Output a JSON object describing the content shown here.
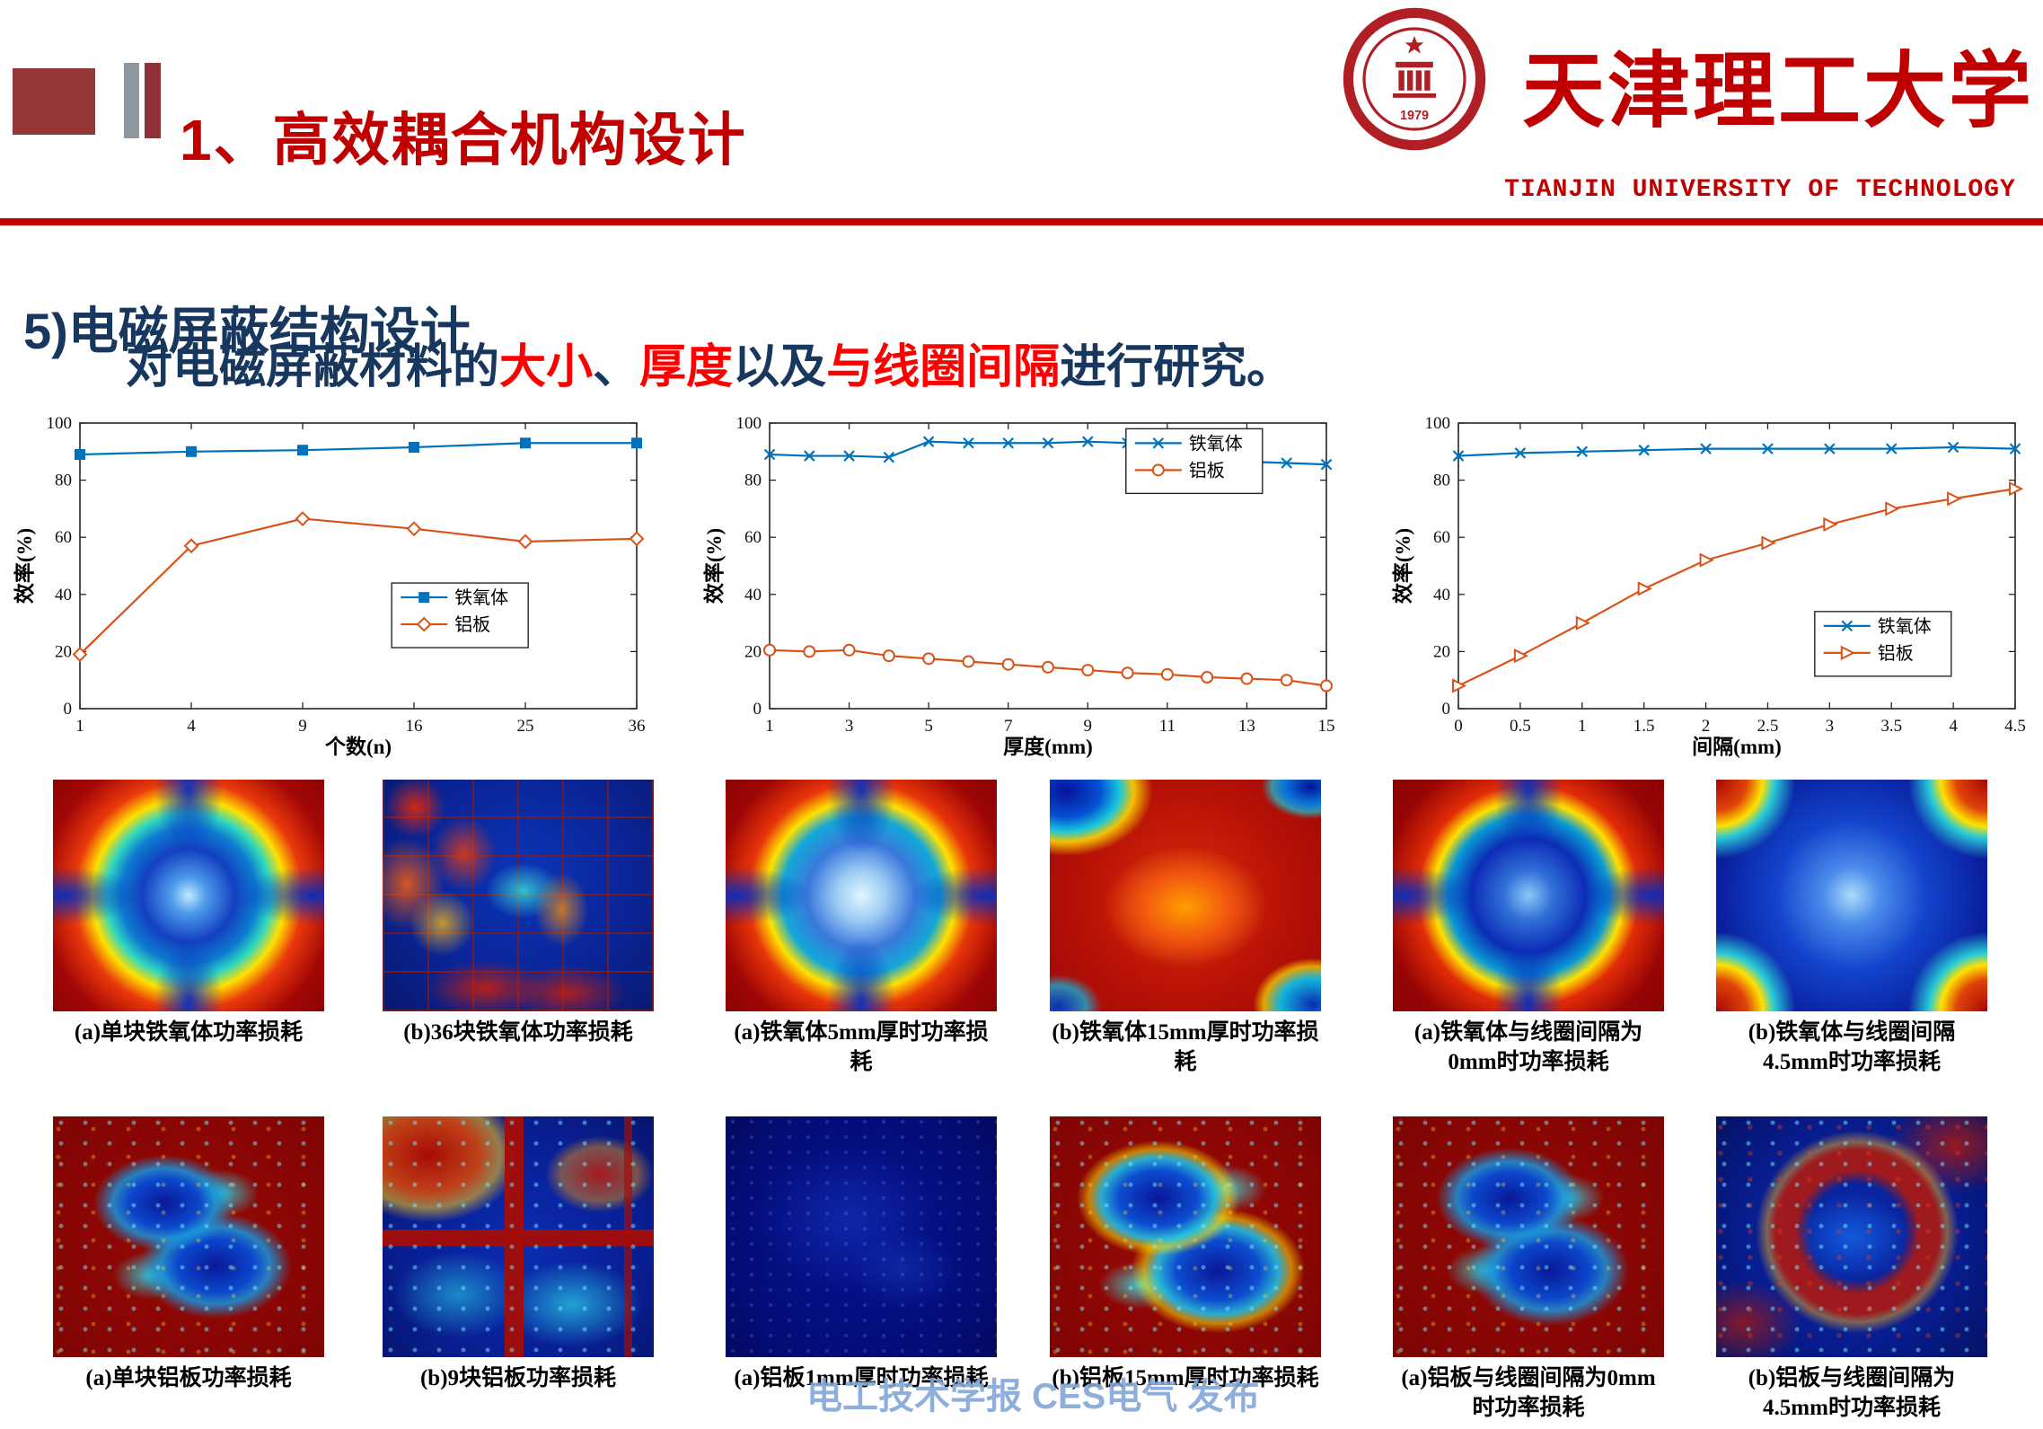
{
  "header": {
    "title": "1、高效耦合机构设计",
    "university_cn": "天津理工大学",
    "university_en": "TIANJIN UNIVERSITY OF TECHNOLOGY",
    "seal_year": "1979"
  },
  "section": {
    "title": "5)电磁屏蔽结构设计",
    "subtitle_parts": [
      {
        "text": "对电磁屏蔽材料的",
        "color": "#17375E"
      },
      {
        "text": "大小",
        "color": "#FF0000"
      },
      {
        "text": "、",
        "color": "#17375E"
      },
      {
        "text": "厚度",
        "color": "#FF0000"
      },
      {
        "text": "以及",
        "color": "#17375E"
      },
      {
        "text": "与线圈间隔",
        "color": "#FF0000"
      },
      {
        "text": "进行研究。",
        "color": "#17375E"
      }
    ]
  },
  "chart_data": [
    {
      "type": "line",
      "title": "",
      "xlabel": "个数(n)",
      "ylabel": "效率(%)",
      "categories": [
        "1",
        "4",
        "9",
        "16",
        "25",
        "36"
      ],
      "ylim": [
        0,
        100
      ],
      "yticks": [
        0,
        20,
        40,
        60,
        80,
        100
      ],
      "grid": false,
      "legend_position": "center-right",
      "legend_pos": {
        "x": 0.56,
        "y": 0.56
      },
      "series": [
        {
          "name": "铁氧体",
          "color": "#0072BD",
          "marker": "square",
          "values": [
            89,
            90,
            90.5,
            91.5,
            93,
            93
          ]
        },
        {
          "name": "铝板",
          "color": "#D95319",
          "marker": "diamond",
          "values": [
            19,
            57,
            66.5,
            63,
            58.5,
            59.5
          ]
        }
      ]
    },
    {
      "type": "line",
      "title": "",
      "xlabel": "厚度(mm)",
      "ylabel": "效率(%)",
      "x": [
        1,
        2,
        3,
        4,
        5,
        6,
        7,
        8,
        9,
        10,
        11,
        12,
        13,
        14,
        15
      ],
      "xlim": [
        1,
        15
      ],
      "xticks": [
        1,
        3,
        5,
        7,
        9,
        11,
        13,
        15
      ],
      "ylim": [
        0,
        100
      ],
      "yticks": [
        0,
        20,
        40,
        60,
        80,
        100
      ],
      "grid": false,
      "legend_position": "top-right",
      "legend_pos": {
        "x": 0.64,
        "y": 0.02
      },
      "series": [
        {
          "name": "铁氧体",
          "color": "#0072BD",
          "marker": "x",
          "values": [
            89,
            88.5,
            88.5,
            88,
            93.5,
            93,
            93,
            93,
            93.5,
            93,
            93,
            93.5,
            86.5,
            86,
            85.5
          ]
        },
        {
          "name": "铝板",
          "color": "#D95319",
          "marker": "circle",
          "values": [
            20.5,
            20,
            20.5,
            18.5,
            17.5,
            16.5,
            15.5,
            14.5,
            13.5,
            12.5,
            12,
            11,
            10.5,
            10,
            8
          ]
        }
      ]
    },
    {
      "type": "line",
      "title": "",
      "xlabel": "间隔(mm)",
      "ylabel": "效率(%)",
      "x": [
        0,
        0.5,
        1,
        1.5,
        2,
        2.5,
        3,
        3.5,
        4,
        4.5
      ],
      "xlim": [
        0,
        4.5
      ],
      "xticks": [
        0,
        0.5,
        1,
        1.5,
        2,
        2.5,
        3,
        3.5,
        4,
        4.5
      ],
      "ylim": [
        0,
        100
      ],
      "yticks": [
        0,
        20,
        40,
        60,
        80,
        100
      ],
      "grid": false,
      "legend_position": "bottom-right",
      "legend_pos": {
        "x": 0.64,
        "y": 0.66
      },
      "series": [
        {
          "name": "铁氧体",
          "color": "#0072BD",
          "marker": "x",
          "values": [
            88.5,
            89.5,
            90,
            90.5,
            91,
            91,
            91,
            91,
            91.5,
            91
          ]
        },
        {
          "name": "铝板",
          "color": "#D95319",
          "marker": "triangle-right",
          "values": [
            8,
            18.5,
            30,
            42,
            52,
            58,
            64.5,
            70,
            73.5,
            77
          ]
        }
      ]
    }
  ],
  "figures": {
    "row1": [
      {
        "caption": "(a)单块铁氧体功率损耗"
      },
      {
        "caption": "(b)36块铁氧体功率损耗"
      },
      {
        "caption": "(a)铁氧体5mm厚时功率损耗"
      },
      {
        "caption": "(b)铁氧体15mm厚时功率损耗"
      },
      {
        "caption": "(a)铁氧体与线圈间隔为0mm时功率损耗"
      },
      {
        "caption": "(b)铁氧体与线圈间隔4.5mm时功率损耗"
      }
    ],
    "row2": [
      {
        "caption": "(a)单块铝板功率损耗"
      },
      {
        "caption": "(b)9块铝板功率损耗"
      },
      {
        "caption": "(a)铝板1mm厚时功率损耗"
      },
      {
        "caption": "(b)铝板15mm厚时功率损耗"
      },
      {
        "caption": "(a)铝板与线圈间隔为0mm时功率损耗"
      },
      {
        "caption": "(b)铝板与线圈间隔为4.5mm时功率损耗"
      }
    ]
  },
  "watermark": "电工技术学报 CES电气 发布",
  "colors": {
    "brand_red": "#C00000",
    "navy": "#17375E",
    "ferrite_blue": "#0072BD",
    "aluminum_orange": "#D95319"
  }
}
